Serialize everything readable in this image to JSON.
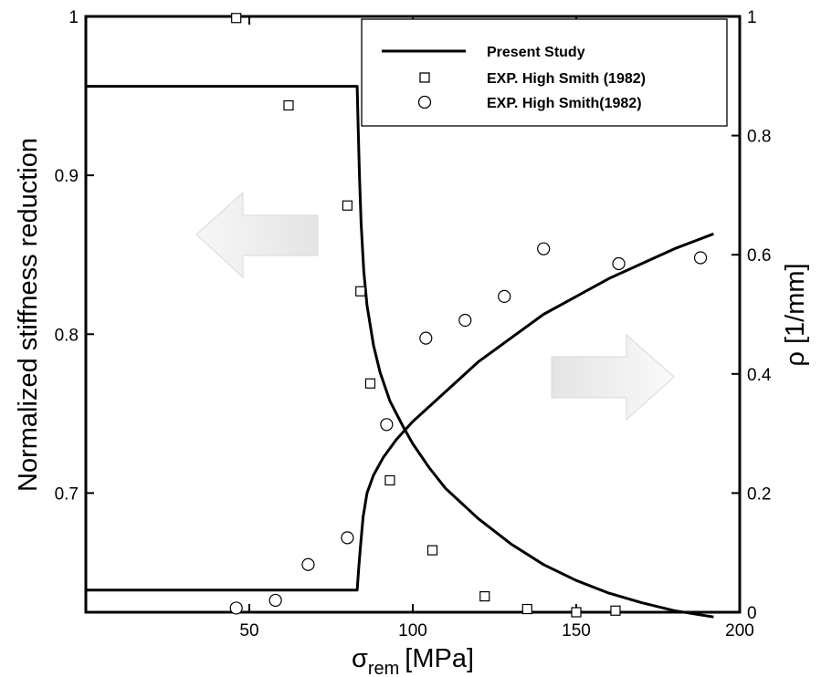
{
  "chart_data": {
    "type": "scatter",
    "xlabel": {
      "symbol": "σ",
      "subscript": "rem",
      "unit": "[MPa]"
    },
    "ylabel_left": "Normalized stiffness reduction",
    "ylabel_right": "ρ [1/mm]",
    "xlim": [
      0,
      200
    ],
    "ylim_left": [
      0.625,
      1.0
    ],
    "ylim_right": [
      0,
      1
    ],
    "x_ticks": [
      50,
      100,
      150,
      200
    ],
    "x_tick_labels": [
      "50",
      "100",
      "150",
      "200"
    ],
    "y_left_ticks": [
      0.7,
      0.8,
      0.9,
      1.0
    ],
    "y_left_tick_labels": [
      "0.7",
      "0.8",
      "0.9",
      "1"
    ],
    "y_right_ticks": [
      0,
      0.2,
      0.4,
      0.6,
      0.8,
      1.0
    ],
    "y_right_tick_labels": [
      "0",
      "0.2",
      "0.4",
      "0.6",
      "0.8",
      "1"
    ],
    "grid": false,
    "legend_position": "top-right",
    "series": [
      {
        "name": "Present Study",
        "kind": "line",
        "axis": "left",
        "x": [
          0,
          83,
          83.3,
          83.7,
          84.2,
          85,
          86,
          88,
          90,
          93,
          97,
          100,
          105,
          110,
          120,
          130,
          140,
          150,
          160,
          170,
          180,
          192
        ],
        "y": [
          0.956,
          0.956,
          0.93,
          0.9,
          0.87,
          0.84,
          0.818,
          0.793,
          0.776,
          0.758,
          0.742,
          0.731,
          0.716,
          0.703,
          0.684,
          0.668,
          0.655,
          0.645,
          0.637,
          0.631,
          0.626,
          0.622
        ]
      },
      {
        "name": "Present Study",
        "kind": "line",
        "axis": "right",
        "x": [
          0,
          83,
          83.4,
          84,
          84.8,
          86,
          88,
          91,
          95,
          100,
          110,
          120,
          130,
          140,
          150,
          160,
          170,
          180,
          192
        ],
        "y": [
          0.037,
          0.037,
          0.07,
          0.11,
          0.16,
          0.2,
          0.23,
          0.26,
          0.29,
          0.32,
          0.37,
          0.42,
          0.46,
          0.5,
          0.53,
          0.56,
          0.585,
          0.61,
          0.635
        ]
      },
      {
        "name": "EXP. High Smith (1982)",
        "kind": "scatter",
        "marker": "square",
        "axis": "left",
        "x": [
          46,
          62,
          80,
          84,
          87,
          93,
          106,
          122,
          135,
          150,
          162
        ],
        "y": [
          0.999,
          0.944,
          0.881,
          0.827,
          0.769,
          0.708,
          0.664,
          0.635,
          0.627,
          0.625,
          0.626
        ]
      },
      {
        "name": "EXP. High Smith(1982)",
        "kind": "scatter",
        "marker": "circle",
        "axis": "right",
        "x": [
          46,
          58,
          68,
          80,
          92,
          104,
          116,
          128,
          140,
          163,
          188
        ],
        "y": [
          0.007,
          0.02,
          0.08,
          0.125,
          0.315,
          0.46,
          0.49,
          0.53,
          0.61,
          0.585,
          0.595
        ]
      }
    ],
    "legend": [
      {
        "label": "Present Study",
        "marker": "line"
      },
      {
        "label": "EXP. High Smith (1982)",
        "marker": "square"
      },
      {
        "label": "EXP. High Smith(1982)",
        "marker": "circle"
      }
    ]
  }
}
